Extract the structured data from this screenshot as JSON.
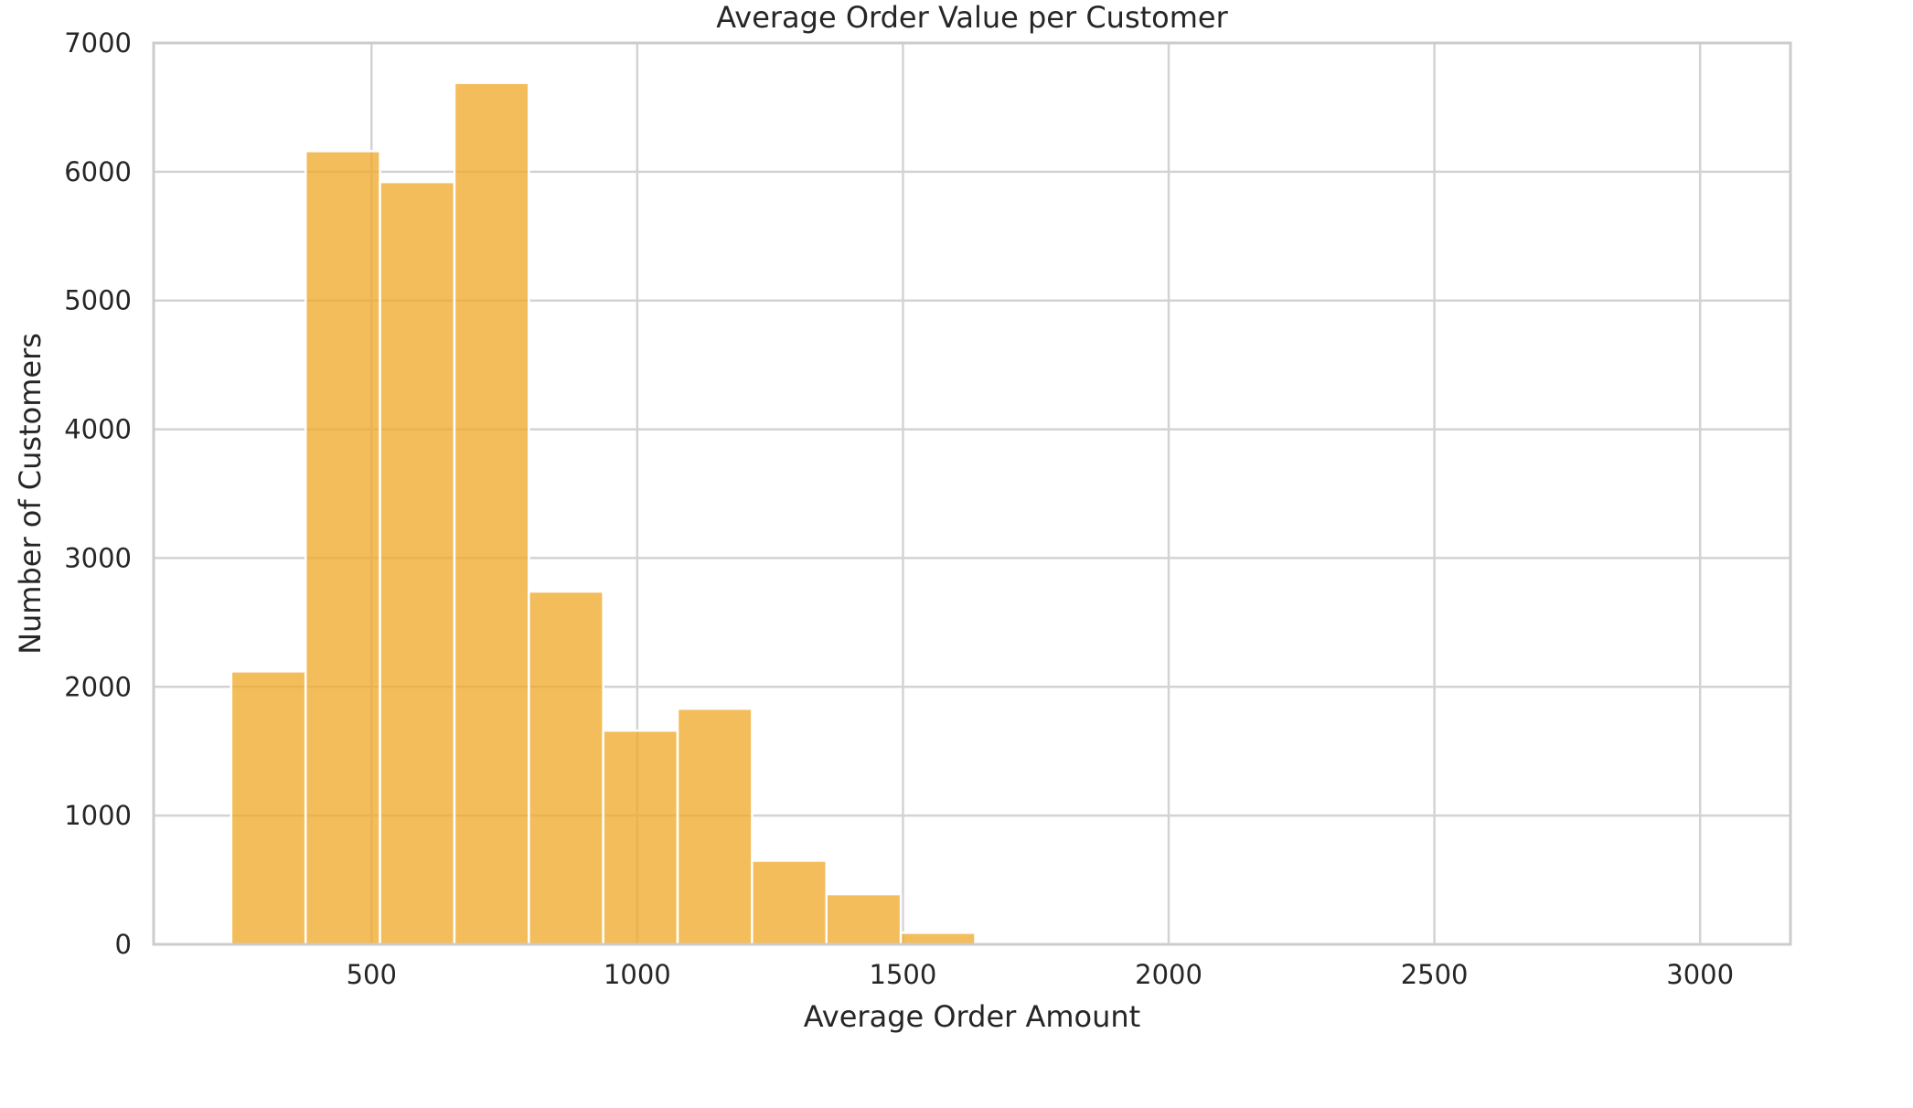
{
  "chart_data": {
    "type": "bar",
    "title": "Average Order Value per Customer",
    "xlabel": "Average Order Amount",
    "ylabel": "Number of Customers",
    "xlim": [
      90,
      3170
    ],
    "ylim": [
      0,
      7000
    ],
    "xticks": [
      500,
      1000,
      1500,
      2000,
      2500,
      3000
    ],
    "yticks": [
      0,
      1000,
      2000,
      3000,
      4000,
      5000,
      6000,
      7000
    ],
    "grid": true,
    "legend": "none",
    "bar_color": "#f0aa2d",
    "bin_edges": [
      236,
      376,
      516,
      656,
      796,
      936,
      1076,
      1216,
      1356,
      1496,
      1636
    ],
    "values": [
      2120,
      6160,
      5920,
      6690,
      2740,
      1660,
      1830,
      650,
      390,
      90
    ]
  }
}
